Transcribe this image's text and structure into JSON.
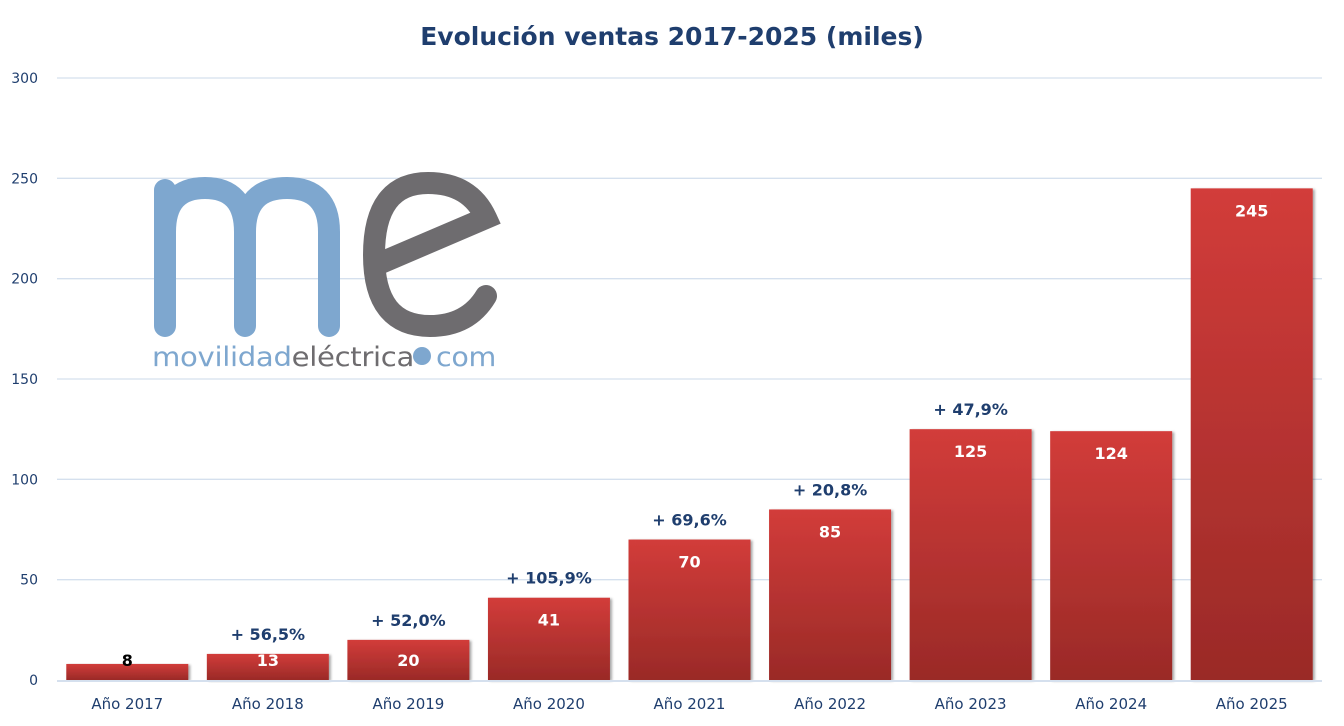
{
  "chart_data": {
    "type": "bar",
    "title": "Evolución ventas 2017-2025 (miles)",
    "xlabel": "",
    "ylabel": "",
    "ylim": [
      0,
      300
    ],
    "yticks": [
      0,
      50,
      100,
      150,
      200,
      250,
      300
    ],
    "grid": true,
    "legend": "none",
    "categories": [
      "Año 2017",
      "Año 2018",
      "Año 2019",
      "Año 2020",
      "Año 2021",
      "Año 2022",
      "Año 2023",
      "Año 2024",
      "Año 2025"
    ],
    "values": [
      8,
      13,
      20,
      41,
      70,
      85,
      125,
      124,
      245
    ],
    "data_labels": [
      "8",
      "13",
      "20",
      "41",
      "70",
      "85",
      "125",
      "124",
      "245"
    ],
    "growth_labels": [
      "",
      "+ 56,5%",
      "+ 52,0%",
      "+ 105,9%",
      "+ 69,6%",
      "+ 20,8%",
      "+ 47,9%",
      "",
      ""
    ],
    "colors": {
      "bar_top": "#d23c3a",
      "bar_bottom": "#9a2a27",
      "grid": "#d5e0ee",
      "text": "#1f3e6e"
    }
  },
  "watermark": {
    "logo_letters": "me",
    "logo_text_1": "movilidad",
    "logo_text_2": "eléctrica",
    "logo_text_3": "com",
    "color_blue": "#7ea7cf",
    "color_gray": "#6e6c6f"
  }
}
